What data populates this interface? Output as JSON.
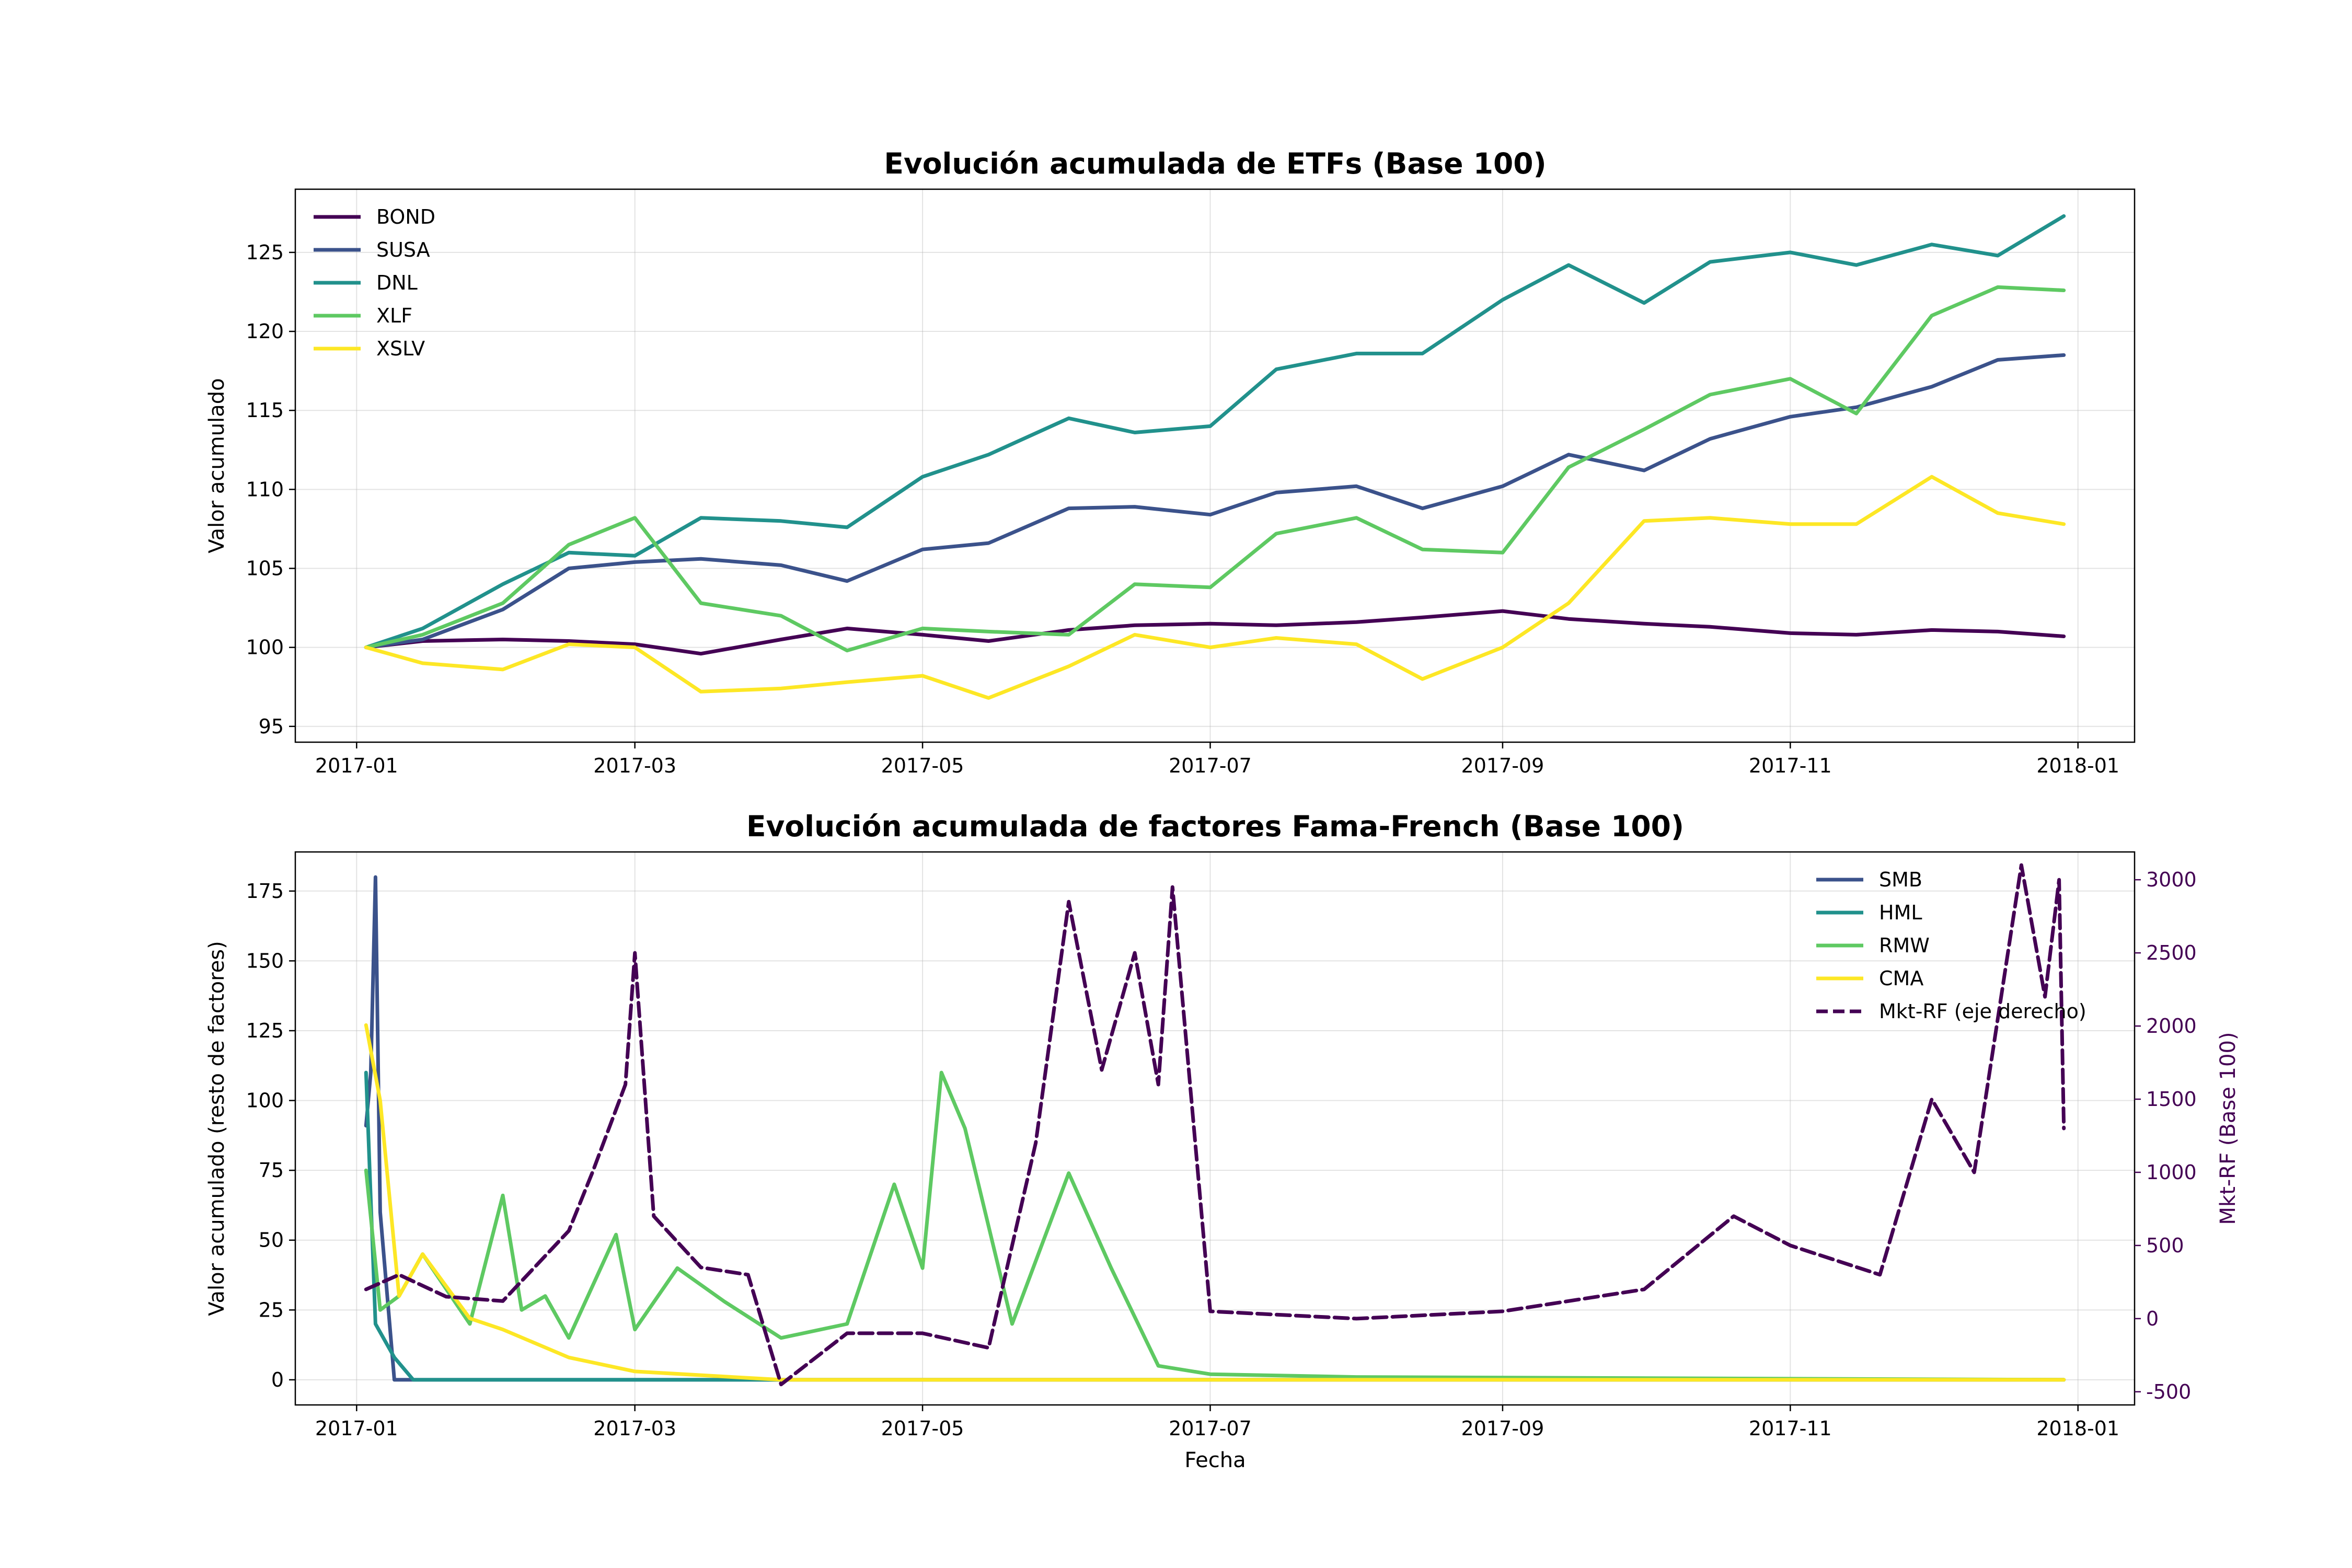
{
  "chart_data": [
    {
      "type": "line",
      "title": "Evolución acumulada de ETFs (Base 100)",
      "xlabel": "",
      "ylabel": "Valor acumulado",
      "x_ticks": [
        "2017-01",
        "2017-03",
        "2017-05",
        "2017-07",
        "2017-09",
        "2017-11",
        "2018-01"
      ],
      "xlim": [
        "2016-12-19",
        "2018-01-13"
      ],
      "ylim": [
        94,
        129
      ],
      "y_ticks": [
        95,
        100,
        105,
        110,
        115,
        120,
        125
      ],
      "grid": true,
      "legend": "upper-left",
      "series": [
        {
          "name": "BOND",
          "color": "#440154",
          "x": [
            "2017-01-03",
            "2017-01-15",
            "2017-02-01",
            "2017-02-15",
            "2017-03-01",
            "2017-03-15",
            "2017-04-01",
            "2017-04-15",
            "2017-05-01",
            "2017-05-15",
            "2017-06-01",
            "2017-06-15",
            "2017-07-01",
            "2017-07-15",
            "2017-08-01",
            "2017-08-15",
            "2017-09-01",
            "2017-09-15",
            "2017-10-01",
            "2017-10-15",
            "2017-11-01",
            "2017-11-15",
            "2017-12-01",
            "2017-12-15",
            "2017-12-29"
          ],
          "values": [
            100,
            100.4,
            100.5,
            100.4,
            100.2,
            99.6,
            100.5,
            101.2,
            100.8,
            100.4,
            101.1,
            101.4,
            101.5,
            101.4,
            101.6,
            101.9,
            102.3,
            101.8,
            101.5,
            101.3,
            100.9,
            100.8,
            101.1,
            101.0,
            100.7
          ]
        },
        {
          "name": "SUSA",
          "color": "#3b528b",
          "x": [
            "2017-01-03",
            "2017-01-15",
            "2017-02-01",
            "2017-02-15",
            "2017-03-01",
            "2017-03-15",
            "2017-04-01",
            "2017-04-15",
            "2017-05-01",
            "2017-05-15",
            "2017-06-01",
            "2017-06-15",
            "2017-07-01",
            "2017-07-15",
            "2017-08-01",
            "2017-08-15",
            "2017-09-01",
            "2017-09-15",
            "2017-10-01",
            "2017-10-15",
            "2017-11-01",
            "2017-11-15",
            "2017-12-01",
            "2017-12-15",
            "2017-12-29"
          ],
          "values": [
            100,
            100.5,
            102.4,
            105.0,
            105.4,
            105.6,
            105.2,
            104.2,
            106.2,
            106.6,
            108.8,
            108.9,
            108.4,
            109.8,
            110.2,
            108.8,
            110.2,
            112.2,
            111.2,
            113.2,
            114.6,
            115.2,
            116.5,
            118.2,
            118.5
          ]
        },
        {
          "name": "DNL",
          "color": "#21918c",
          "x": [
            "2017-01-03",
            "2017-01-15",
            "2017-02-01",
            "2017-02-15",
            "2017-03-01",
            "2017-03-15",
            "2017-04-01",
            "2017-04-15",
            "2017-05-01",
            "2017-05-15",
            "2017-06-01",
            "2017-06-15",
            "2017-07-01",
            "2017-07-15",
            "2017-08-01",
            "2017-08-15",
            "2017-09-01",
            "2017-09-15",
            "2017-10-01",
            "2017-10-15",
            "2017-11-01",
            "2017-11-15",
            "2017-12-01",
            "2017-12-15",
            "2017-12-29"
          ],
          "values": [
            100,
            101.2,
            104.0,
            106.0,
            105.8,
            108.2,
            108.0,
            107.6,
            110.8,
            112.2,
            114.5,
            113.6,
            114.0,
            117.6,
            118.6,
            118.6,
            122.0,
            124.2,
            121.8,
            124.4,
            125.0,
            124.2,
            125.5,
            124.8,
            127.3
          ]
        },
        {
          "name": "XLF",
          "color": "#5ec962",
          "x": [
            "2017-01-03",
            "2017-01-15",
            "2017-02-01",
            "2017-02-15",
            "2017-03-01",
            "2017-03-15",
            "2017-04-01",
            "2017-04-15",
            "2017-05-01",
            "2017-05-15",
            "2017-06-01",
            "2017-06-15",
            "2017-07-01",
            "2017-07-15",
            "2017-08-01",
            "2017-08-15",
            "2017-09-01",
            "2017-09-15",
            "2017-10-01",
            "2017-10-15",
            "2017-11-01",
            "2017-11-15",
            "2017-12-01",
            "2017-12-15",
            "2017-12-29"
          ],
          "values": [
            100,
            100.8,
            102.8,
            106.5,
            108.2,
            102.8,
            102.0,
            99.8,
            101.2,
            101.0,
            100.8,
            104.0,
            103.8,
            107.2,
            108.2,
            106.2,
            106.0,
            111.4,
            113.8,
            116.0,
            117.0,
            114.8,
            121.0,
            122.8,
            122.6
          ]
        },
        {
          "name": "XSLV",
          "color": "#fde725",
          "x": [
            "2017-01-03",
            "2017-01-15",
            "2017-02-01",
            "2017-02-15",
            "2017-03-01",
            "2017-03-15",
            "2017-04-01",
            "2017-04-15",
            "2017-05-01",
            "2017-05-15",
            "2017-06-01",
            "2017-06-15",
            "2017-07-01",
            "2017-07-15",
            "2017-08-01",
            "2017-08-15",
            "2017-09-01",
            "2017-09-15",
            "2017-10-01",
            "2017-10-15",
            "2017-11-01",
            "2017-11-15",
            "2017-12-01",
            "2017-12-15",
            "2017-12-29"
          ],
          "values": [
            100,
            99.0,
            98.6,
            100.2,
            100.0,
            97.2,
            97.4,
            97.8,
            98.2,
            96.8,
            98.8,
            100.8,
            100.0,
            100.6,
            100.2,
            98.0,
            100.0,
            102.8,
            108.0,
            108.2,
            107.8,
            107.8,
            110.8,
            108.5,
            107.8
          ]
        }
      ]
    },
    {
      "type": "line",
      "title": "Evolución acumulada de factores Fama-French (Base 100)",
      "xlabel": "Fecha",
      "ylabel": "Valor acumulado (resto de factores)",
      "y2label": "Mkt-RF (Base 100)",
      "x_ticks": [
        "2017-01",
        "2017-03",
        "2017-05",
        "2017-07",
        "2017-09",
        "2017-11",
        "2018-01"
      ],
      "xlim": [
        "2016-12-19",
        "2018-01-13"
      ],
      "ylim": [
        -9,
        189
      ],
      "y_ticks": [
        0,
        25,
        50,
        75,
        100,
        125,
        150,
        175
      ],
      "y2lim": [
        -590,
        3190
      ],
      "y2_ticks": [
        -500,
        0,
        500,
        1000,
        1500,
        2000,
        2500,
        3000
      ],
      "grid": true,
      "legend": "upper-right",
      "series": [
        {
          "name": "SMB",
          "color": "#3b528b",
          "axis": "left",
          "x": [
            "2017-01-03",
            "2017-01-04",
            "2017-01-05",
            "2017-01-06",
            "2017-01-09",
            "2017-01-15",
            "2017-02-01",
            "2017-03-01",
            "2017-04-01",
            "2017-12-29"
          ],
          "values": [
            91,
            110,
            180,
            60,
            0,
            0,
            0,
            0,
            0,
            0
          ]
        },
        {
          "name": "HML",
          "color": "#21918c",
          "axis": "left",
          "x": [
            "2017-01-03",
            "2017-01-05",
            "2017-01-09",
            "2017-01-13",
            "2017-02-01",
            "2017-03-01",
            "2017-04-01",
            "2017-12-29"
          ],
          "values": [
            110,
            20,
            8,
            0,
            0,
            0,
            0,
            0
          ]
        },
        {
          "name": "RMW",
          "color": "#5ec962",
          "axis": "left",
          "x": [
            "2017-01-03",
            "2017-01-06",
            "2017-01-10",
            "2017-01-15",
            "2017-01-25",
            "2017-02-01",
            "2017-02-05",
            "2017-02-10",
            "2017-02-15",
            "2017-02-25",
            "2017-03-01",
            "2017-03-10",
            "2017-03-20",
            "2017-04-01",
            "2017-04-15",
            "2017-04-25",
            "2017-05-01",
            "2017-05-05",
            "2017-05-10",
            "2017-05-20",
            "2017-06-01",
            "2017-06-10",
            "2017-06-20",
            "2017-07-01",
            "2017-08-01",
            "2017-12-29"
          ],
          "values": [
            75,
            25,
            30,
            45,
            20,
            66,
            25,
            30,
            15,
            52,
            18,
            40,
            28,
            15,
            20,
            70,
            40,
            110,
            90,
            20,
            74,
            40,
            5,
            2,
            1,
            0
          ]
        },
        {
          "name": "CMA",
          "color": "#fde725",
          "axis": "left",
          "x": [
            "2017-01-03",
            "2017-01-06",
            "2017-01-10",
            "2017-01-15",
            "2017-01-25",
            "2017-02-01",
            "2017-02-15",
            "2017-03-01",
            "2017-04-01",
            "2017-12-29"
          ],
          "values": [
            127,
            100,
            30,
            45,
            22,
            18,
            8,
            3,
            0,
            0
          ]
        },
        {
          "name": "Mkt-RF (eje derecho)",
          "color": "#440154",
          "axis": "right",
          "dash": true,
          "x": [
            "2017-01-03",
            "2017-01-10",
            "2017-01-20",
            "2017-02-01",
            "2017-02-15",
            "2017-02-20",
            "2017-02-27",
            "2017-03-01",
            "2017-03-05",
            "2017-03-15",
            "2017-03-25",
            "2017-04-01",
            "2017-04-15",
            "2017-05-01",
            "2017-05-15",
            "2017-05-25",
            "2017-06-01",
            "2017-06-08",
            "2017-06-15",
            "2017-06-20",
            "2017-06-23",
            "2017-07-01",
            "2017-08-01",
            "2017-09-01",
            "2017-10-01",
            "2017-10-20",
            "2017-11-01",
            "2017-11-20",
            "2017-12-01",
            "2017-12-10",
            "2017-12-20",
            "2017-12-25",
            "2017-12-28",
            "2017-12-29"
          ],
          "values": [
            200,
            300,
            150,
            120,
            600,
            1000,
            1600,
            2500,
            700,
            350,
            300,
            -450,
            -100,
            -100,
            -200,
            1200,
            2850,
            1700,
            2500,
            1600,
            2950,
            50,
            0,
            50,
            200,
            700,
            500,
            300,
            1500,
            1000,
            3100,
            2200,
            3000,
            1300
          ]
        }
      ]
    }
  ]
}
